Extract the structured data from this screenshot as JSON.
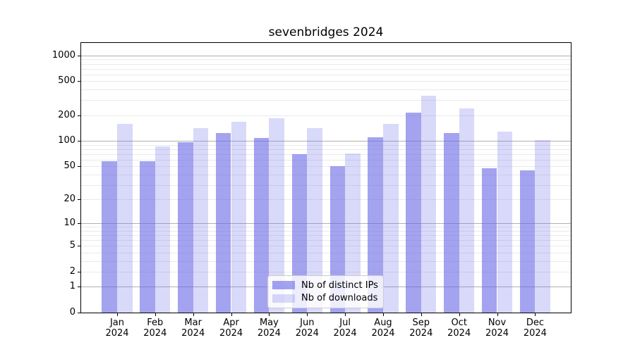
{
  "title": "sevenbridges 2024",
  "colors": {
    "background": "#ffffff",
    "axis": "#000000",
    "text": "#000000",
    "grid_major": "#b0b0b0",
    "grid_minor": "#eaeaea",
    "bar_base": "#6666e6",
    "legend_border": "#cccccc",
    "legend_background": "rgba(255,255,255,0.8)"
  },
  "chart_data": {
    "type": "bar",
    "title": "sevenbridges 2024",
    "categories": [
      "Jan 2024",
      "Feb 2024",
      "Mar 2024",
      "Apr 2024",
      "May 2024",
      "Jun 2024",
      "Jul 2024",
      "Aug 2024",
      "Sep 2024",
      "Oct 2024",
      "Nov 2024",
      "Dec 2024"
    ],
    "series": [
      {
        "name": "Nb of distinct IPs",
        "key": "distinct-ips",
        "color": "rgba(102,102,230,0.6)",
        "values": [
          57,
          57,
          97,
          124,
          109,
          70,
          50,
          111,
          216,
          124,
          47,
          45
        ]
      },
      {
        "name": "Nb of downloads",
        "key": "downloads",
        "color": "rgba(102,102,230,0.25)",
        "values": [
          158,
          86,
          142,
          167,
          185,
          140,
          71,
          158,
          340,
          240,
          128,
          102
        ]
      }
    ],
    "xlabel": "",
    "ylabel": "",
    "yscale": "log1p",
    "ylim": [
      0,
      1400
    ],
    "y_ticks": {
      "labels": [
        "1000",
        "500",
        "200",
        "100",
        "50",
        "20",
        "10",
        "5",
        "2",
        "1",
        "0"
      ],
      "values": [
        1000,
        500,
        200,
        100,
        50,
        20,
        10,
        5,
        2,
        1,
        0
      ]
    },
    "y_grid": {
      "major": [
        1,
        10,
        100,
        1000
      ],
      "minor": [
        2,
        3,
        4,
        5,
        6,
        7,
        8,
        9,
        20,
        30,
        40,
        50,
        60,
        70,
        80,
        90,
        200,
        300,
        400,
        500,
        600,
        700,
        800,
        900
      ]
    },
    "grid": "horizontal major+minor, behind semi-transparent bars",
    "legend_position": "lower center"
  }
}
